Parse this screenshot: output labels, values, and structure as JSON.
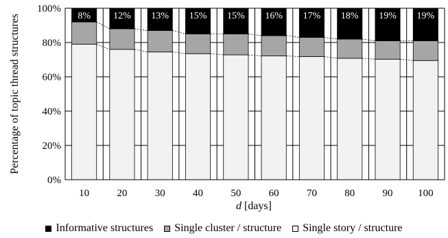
{
  "chart_data": {
    "type": "bar",
    "stacked": true,
    "title": "",
    "xlabel_italic": "d",
    "xlabel_rest": " [days]",
    "ylabel": "Percentage of topic thread structures",
    "categories": [
      "10",
      "20",
      "30",
      "40",
      "50",
      "60",
      "70",
      "80",
      "90",
      "100"
    ],
    "ylim": [
      0,
      100
    ],
    "yticks": [
      "0%",
      "20%",
      "40%",
      "60%",
      "80%",
      "100%"
    ],
    "grid": true,
    "legend_position": "bottom",
    "series": [
      {
        "name": "Single story / structure",
        "color": "#f2f2f2",
        "values": [
          79,
          76,
          74.5,
          73.5,
          72.8,
          72.2,
          71.8,
          70.8,
          70.3,
          69.5
        ]
      },
      {
        "name": "Single cluster / structure",
        "color": "#a6a6a6",
        "values": [
          13,
          12,
          12.5,
          11.5,
          12.2,
          11.8,
          11.2,
          11.2,
          10.7,
          11.5
        ]
      },
      {
        "name": "Informative structures",
        "color": "#000000",
        "values": [
          8,
          12,
          13,
          15,
          15,
          16,
          17,
          18,
          19,
          19
        ]
      }
    ],
    "data_labels": [
      "8%",
      "12%",
      "13%",
      "15%",
      "15%",
      "16%",
      "17%",
      "18%",
      "19%",
      "19%"
    ],
    "legend_order": [
      "Informative structures",
      "Single cluster / structure",
      "Single story / structure"
    ]
  }
}
